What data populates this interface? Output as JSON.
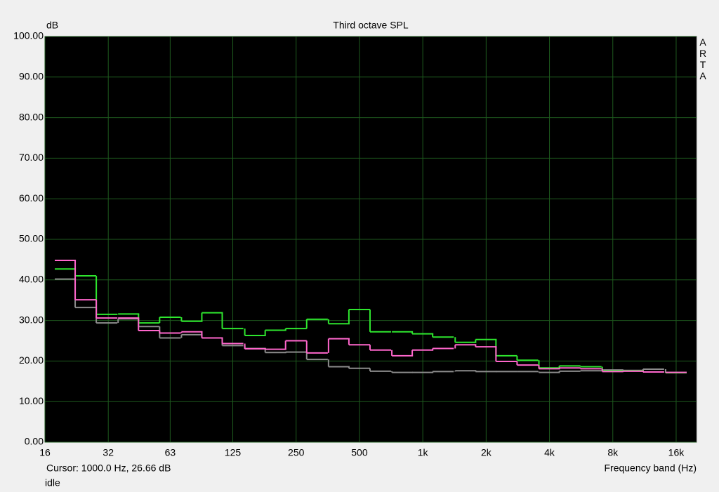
{
  "chart_data": {
    "type": "step",
    "title": "Third octave SPL",
    "y_label": "dB",
    "x_label": "Frequency band (Hz)",
    "brand": "ARTA",
    "cursor": "Cursor:  1000.0 Hz, 26.66 dB",
    "status": "idle",
    "log_x": true,
    "grid": true,
    "background": "#000000",
    "grid_color": "#1e5a1e",
    "x": [
      20,
      25,
      31.5,
      40,
      50,
      63,
      80,
      100,
      125,
      160,
      200,
      250,
      315,
      400,
      500,
      630,
      800,
      1000,
      1250,
      1600,
      2000,
      2500,
      3150,
      4000,
      5000,
      6300,
      8000,
      10000,
      12500,
      16000
    ],
    "series": [
      {
        "color": "#8c8c8c",
        "values": [
          40.2,
          33.2,
          29.4,
          30.4,
          28.5,
          25.7,
          26.5,
          25.7,
          23.8,
          23.1,
          22.1,
          22.2,
          20.4,
          18.6,
          18.2,
          17.5,
          17.2,
          17.2,
          17.4,
          17.6,
          17.4,
          17.4,
          17.4,
          17.2,
          17.5,
          17.6,
          17.8,
          17.7,
          18.0,
          17.2
        ]
      },
      {
        "color": "#2ee62e",
        "values": [
          42.7,
          41.0,
          31.5,
          31.6,
          29.4,
          30.8,
          29.8,
          31.9,
          28.0,
          26.3,
          27.6,
          28.0,
          30.3,
          29.2,
          32.7,
          27.2,
          27.2,
          26.7,
          25.9,
          24.6,
          25.3,
          21.3,
          20.2,
          18.3,
          18.8,
          18.6,
          17.6,
          17.6,
          17.3,
          17.1
        ]
      },
      {
        "color": "#ff66cc",
        "values": [
          44.8,
          35.1,
          30.6,
          30.6,
          27.5,
          26.9,
          27.2,
          25.7,
          24.3,
          23.0,
          22.9,
          25.0,
          22.0,
          25.5,
          24.0,
          22.7,
          21.3,
          22.7,
          23.1,
          24.0,
          23.5,
          19.9,
          19.0,
          18.1,
          18.3,
          18.1,
          17.4,
          17.5,
          17.3,
          17.2
        ]
      }
    ],
    "xlim": [
      16,
      20000
    ],
    "xticks": [
      16,
      32,
      63,
      125,
      250,
      500,
      {
        "value": 1000,
        "label": "1k"
      },
      {
        "value": 2000,
        "label": "2k"
      },
      {
        "value": 4000,
        "label": "4k"
      },
      {
        "value": 8000,
        "label": "8k"
      },
      {
        "value": 16000,
        "label": "16k"
      }
    ],
    "ylim": [
      0,
      100
    ],
    "yticks": [
      {
        "value": 0,
        "label": "0.00"
      },
      {
        "value": 10,
        "label": "10.00"
      },
      {
        "value": 20,
        "label": "20.00"
      },
      {
        "value": 30,
        "label": "30.00"
      },
      {
        "value": 40,
        "label": "40.00"
      },
      {
        "value": 50,
        "label": "50.00"
      },
      {
        "value": 60,
        "label": "60.00"
      },
      {
        "value": 70,
        "label": "70.00"
      },
      {
        "value": 80,
        "label": "80.00"
      },
      {
        "value": 90,
        "label": "90.00"
      },
      {
        "value": 100,
        "label": "100.00"
      }
    ]
  }
}
